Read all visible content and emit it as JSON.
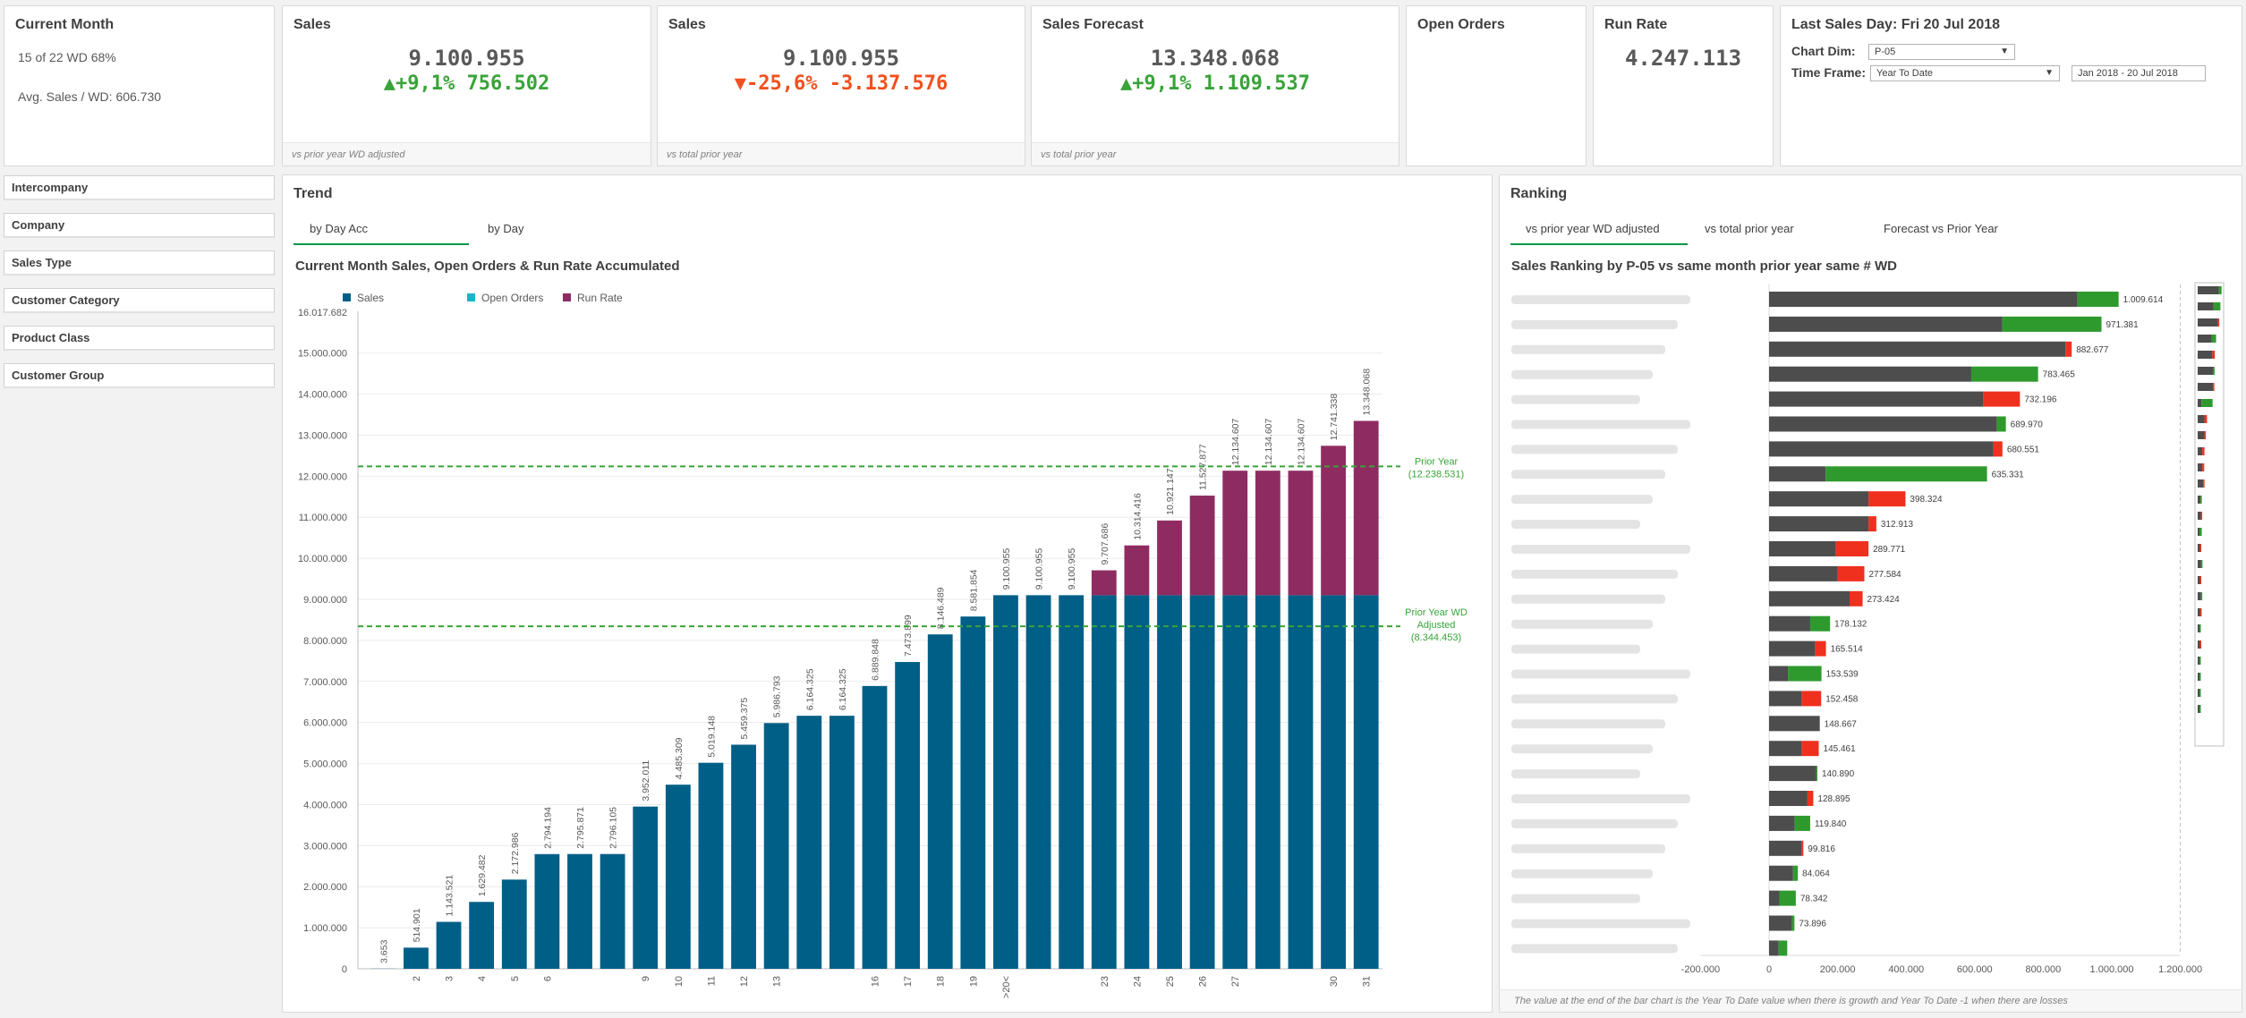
{
  "current_month": {
    "title": "Current Month",
    "wd_text": "15 of 22 WD 68%",
    "avg_text": "Avg. Sales / WD: 606.730"
  },
  "kpis": [
    {
      "title": "Sales",
      "value": "9.100.955",
      "delta": "+9,1%",
      "delta_abs": "756.502",
      "direction": "up",
      "foot": "vs prior year WD adjusted"
    },
    {
      "title": "Sales",
      "value": "9.100.955",
      "delta": "-25,6%",
      "delta_abs": "-3.137.576",
      "direction": "down",
      "foot": "vs total prior year"
    },
    {
      "title": "Sales Forecast",
      "value": "13.348.068",
      "delta": "+9,1%",
      "delta_abs": "1.109.537",
      "direction": "up",
      "foot": "vs total prior year"
    }
  ],
  "open_orders": {
    "title": "Open Orders"
  },
  "run_rate": {
    "title": "Run Rate",
    "value": "4.247.113"
  },
  "last_sales": {
    "title": "Last Sales Day: Fri 20 Jul 2018",
    "chart_dim_label": "Chart Dim:",
    "chart_dim_value": "P-05",
    "time_frame_label": "Time Frame:",
    "time_frame_value": "Year To Date",
    "date_range": "Jan 2018 - 20 Jul 2018"
  },
  "filters": [
    "Intercompany",
    "Company",
    "Sales Type",
    "Customer Category",
    "Product Class",
    "Customer Group"
  ],
  "trend": {
    "title": "Trend",
    "tabs": [
      "by Day Acc",
      "by Day"
    ],
    "chart_title": "Current Month Sales, Open Orders & Run Rate Accumulated",
    "legend": [
      "Sales",
      "Open Orders",
      "Run Rate"
    ],
    "ref_prior_year": [
      "Prior Year",
      "(12.238.531)"
    ],
    "ref_prior_wd": [
      "Prior Year WD",
      "Adjusted",
      "(8.344.453)"
    ]
  },
  "ranking": {
    "title": "Ranking",
    "tabs": [
      "vs prior year WD adjusted",
      "vs total prior year",
      "Forecast vs Prior Year"
    ],
    "chart_title": "Sales Ranking by P-05 vs same month prior year same # WD",
    "footnote": "The value at the end of the bar chart is the Year To Date value when there is growth and Year To Date -1 when there are losses"
  },
  "colors": {
    "sales": "#005f87",
    "open_orders": "#1ab5c8",
    "run_rate": "#8e2c62",
    "ref_line": "#39a339",
    "rank_base": "#4d4d4d",
    "rank_up": "#2e9a2e",
    "rank_down": "#f0301e",
    "kpi_up": "#39a339",
    "kpi_down": "#f0501e"
  },
  "chart_data": [
    {
      "type": "bar",
      "title": "Current Month Sales, Open Orders & Run Rate Accumulated",
      "stacked": true,
      "ylim": [
        0,
        16017682
      ],
      "y_max_label": "16.017.682",
      "y_ticks": [
        0,
        1000000,
        2000000,
        3000000,
        4000000,
        5000000,
        6000000,
        7000000,
        8000000,
        9000000,
        10000000,
        11000000,
        12000000,
        13000000,
        14000000,
        15000000
      ],
      "y_tick_labels": [
        "0",
        "1.000.000",
        "2.000.000",
        "3.000.000",
        "4.000.000",
        "5.000.000",
        "6.000.000",
        "7.000.000",
        "8.000.000",
        "9.000.000",
        "10.000.000",
        "11.000.000",
        "12.000.000",
        "13.000.000",
        "14.000.000",
        "15.000.000"
      ],
      "categories": [
        "1",
        "2",
        "3",
        "4",
        "5",
        "6",
        "7",
        "8",
        "9",
        "10",
        "11",
        "12",
        "13",
        "14",
        "15",
        "16",
        "17",
        "18",
        "19",
        ">20<",
        "21",
        "22",
        "23",
        "24",
        "25",
        "26",
        "27",
        "28",
        "29",
        "30",
        "31"
      ],
      "x_tick_labels": [
        "",
        "2",
        "3",
        "4",
        "5",
        "6",
        "",
        "",
        "9",
        "10",
        "11",
        "12",
        "13",
        "",
        "",
        "16",
        "17",
        "18",
        "19",
        ">20<",
        "",
        "",
        "23",
        "24",
        "25",
        "26",
        "27",
        "",
        "",
        "30",
        "31"
      ],
      "series": [
        {
          "name": "Sales",
          "values": [
            3653,
            514901,
            1143521,
            1629482,
            2172986,
            2794194,
            2795871,
            2796105,
            3952011,
            4485309,
            5019148,
            5459375,
            5986793,
            6164325,
            6164325,
            6889848,
            7473899,
            8146489,
            8581854,
            9100955,
            9100955,
            9100955,
            9100955,
            9100955,
            9100955,
            9100955,
            9100955,
            9100955,
            9100955,
            9100955,
            9100955
          ]
        },
        {
          "name": "Open Orders",
          "values": [
            0,
            0,
            0,
            0,
            0,
            0,
            0,
            0,
            0,
            0,
            0,
            0,
            0,
            0,
            0,
            0,
            0,
            0,
            0,
            0,
            0,
            0,
            0,
            0,
            0,
            0,
            0,
            0,
            0,
            0,
            0
          ]
        },
        {
          "name": "Run Rate",
          "values": [
            0,
            0,
            0,
            0,
            0,
            0,
            0,
            0,
            0,
            0,
            0,
            0,
            0,
            0,
            0,
            0,
            0,
            0,
            0,
            0,
            0,
            0,
            606730,
            1213461,
            1820191,
            2426922,
            3033652,
            3033652,
            3033652,
            3640383,
            4247113
          ]
        }
      ],
      "data_labels": [
        "3.653",
        "514.901",
        "1.143.521",
        "1.629.482",
        "2.172.986",
        "2.794.194",
        "2.795.871",
        "2.796.105",
        "3.952.011",
        "4.485.309",
        "5.019.148",
        "5.459.375",
        "5.986.793",
        "6.164.325",
        "6.164.325",
        "6.889.848",
        "7.473.899",
        "8.146.489",
        "8.581.854",
        "9.100.955",
        "9.100.955",
        "9.100.955",
        "9.707.686",
        "10.314.416",
        "10.921.147",
        "11.527.877",
        "12.134.607",
        "12.134.607",
        "12.134.607",
        "12.741.338",
        "13.348.068"
      ],
      "reference_lines": [
        {
          "value": 12238531
        },
        {
          "value": 8344453
        }
      ],
      "grid": true,
      "legend_position": "top-left"
    },
    {
      "type": "bar",
      "orientation": "horizontal",
      "title": "Sales Ranking by P-05 vs same month prior year same # WD",
      "xlim": [
        -200000,
        1200000
      ],
      "x_ticks": [
        -200000,
        0,
        200000,
        400000,
        600000,
        800000,
        1000000,
        1200000
      ],
      "x_tick_labels": [
        "-200.000",
        "0",
        "200.000",
        "400.000",
        "600.000",
        "800.000",
        "1.000.000",
        "1.200.000"
      ],
      "category_labels_obscured": true,
      "rows": [
        {
          "base": 900000,
          "delta": 120000,
          "label": "1.009.614"
        },
        {
          "base": 680000,
          "delta": 290000,
          "label": "971.381"
        },
        {
          "base": 865000,
          "delta": -18000,
          "label": "882.677"
        },
        {
          "base": 590000,
          "delta": 195000,
          "label": "783.465"
        },
        {
          "base": 625000,
          "delta": -107000,
          "label": "732.196"
        },
        {
          "base": 665000,
          "delta": 26000,
          "label": "689.970"
        },
        {
          "base": 655000,
          "delta": -26000,
          "label": "680.551"
        },
        {
          "base": 165000,
          "delta": 471000,
          "label": "635.331"
        },
        {
          "base": 290000,
          "delta": -108000,
          "label": "398.324"
        },
        {
          "base": 290000,
          "delta": -23000,
          "label": "312.913"
        },
        {
          "base": 195000,
          "delta": -95000,
          "label": "289.771"
        },
        {
          "base": 200000,
          "delta": -78000,
          "label": "277.584"
        },
        {
          "base": 235000,
          "delta": -38000,
          "label": "273.424"
        },
        {
          "base": 120000,
          "delta": 58000,
          "label": "178.132"
        },
        {
          "base": 135000,
          "delta": -31000,
          "label": "165.514"
        },
        {
          "base": 55000,
          "delta": 98000,
          "label": "153.539"
        },
        {
          "base": 95000,
          "delta": -57000,
          "label": "152.458"
        },
        {
          "base": 148000,
          "delta": 0,
          "label": "148.667"
        },
        {
          "base": 95000,
          "delta": -50000,
          "label": "145.461"
        },
        {
          "base": 138000,
          "delta": 3000,
          "label": "140.890"
        },
        {
          "base": 112000,
          "delta": -17000,
          "label": "128.895"
        },
        {
          "base": 75000,
          "delta": 45000,
          "label": "119.840"
        },
        {
          "base": 95000,
          "delta": -5000,
          "label": "99.816"
        },
        {
          "base": 70000,
          "delta": 14000,
          "label": "84.064"
        },
        {
          "base": 30000,
          "delta": 48000,
          "label": "78.342"
        },
        {
          "base": 67000,
          "delta": 7000,
          "label": "73.896"
        },
        {
          "base": 28000,
          "delta": 25000,
          "label": ""
        }
      ]
    }
  ]
}
